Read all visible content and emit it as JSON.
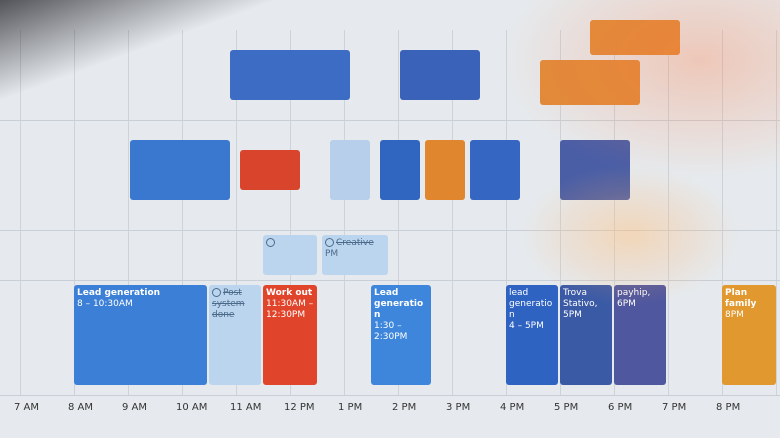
{
  "hours": [
    "7 AM",
    "8 AM",
    "9 AM",
    "10 AM",
    "11 AM",
    "12 PM",
    "1 PM",
    "2 PM",
    "3 PM",
    "4 PM",
    "5 PM",
    "6 PM",
    "7 PM",
    "8 PM"
  ],
  "events": [
    {
      "title": "Lead generation",
      "time": "8 – 10:30AM",
      "color": "#3b7fd6"
    },
    {
      "title": "Work out",
      "time": "11:30AM – 12:30PM",
      "color": "#e0452b"
    },
    {
      "title": "Lead generation",
      "time": "1:30 – 2:30PM",
      "color": "#3d86dc"
    },
    {
      "title": "lead generation",
      "time": "4 – 5PM",
      "color": "#2f63c2"
    },
    {
      "title": "Trova Stativo, 5PM",
      "color": "#3b5aa6"
    },
    {
      "title": "payhip, 6PM",
      "color": "#4f579e"
    },
    {
      "title": "Plan family",
      "time": "8PM",
      "color": "#e0982f"
    }
  ],
  "tasks": [
    {
      "title": "Post system done",
      "done": true
    },
    {
      "title": "Creative",
      "time": "PM",
      "done": true
    }
  ],
  "colors": {
    "blue": "#3b7fd6",
    "red": "#e0452b",
    "orange": "#e0982f",
    "purple": "#4f579e",
    "task": "#bcd5ee"
  }
}
